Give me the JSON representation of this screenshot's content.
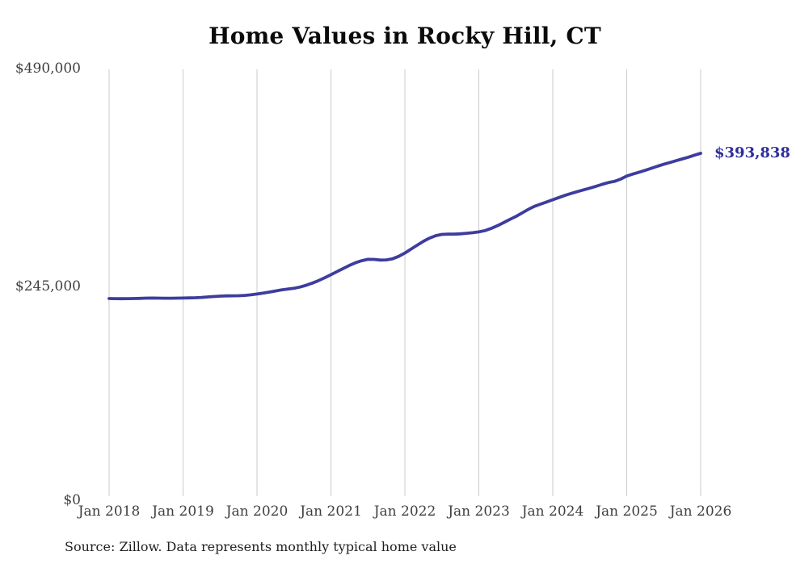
{
  "chart_data": {
    "type": "line",
    "title": "Home Values in Rocky Hill, CT",
    "x_start": "2018-01",
    "x_end": "2026-01",
    "interval": "monthly",
    "x_tick_labels": [
      "Jan 2018",
      "Jan 2019",
      "Jan 2020",
      "Jan 2021",
      "Jan 2022",
      "Jan 2023",
      "Jan 2024",
      "Jan 2025",
      "Jan 2026"
    ],
    "y_tick_labels": [
      "$0",
      "$245,000",
      "$490,000"
    ],
    "ylim": [
      0,
      490000
    ],
    "grid": "vertical-only",
    "legend": "none",
    "line_color": "#3e3c9e",
    "grid_color": "#cbcbcb",
    "end_label": "$393,838",
    "latest_value": 393838,
    "values": [
      229000,
      228900,
      228800,
      228900,
      229000,
      229200,
      229400,
      229500,
      229400,
      229300,
      229300,
      229400,
      229500,
      229700,
      229900,
      230300,
      230800,
      231300,
      231700,
      232000,
      232100,
      232200,
      232500,
      233200,
      234100,
      235100,
      236300,
      237600,
      238900,
      239700,
      240600,
      242100,
      244100,
      246600,
      249400,
      252600,
      256100,
      259600,
      263100,
      266600,
      269600,
      271900,
      273500,
      273400,
      272700,
      272800,
      274100,
      276900,
      280600,
      285100,
      289600,
      293900,
      297600,
      300300,
      301800,
      302100,
      302100,
      302400,
      303100,
      303700,
      304600,
      306100,
      308600,
      311600,
      315100,
      318600,
      322100,
      326100,
      330100,
      333600,
      336100,
      338600,
      341100,
      343600,
      346100,
      348300,
      350400,
      352300,
      354300,
      356400,
      358600,
      360600,
      362000,
      364500,
      368000,
      370300,
      372400,
      374500,
      376800,
      379200,
      381400,
      383400,
      385400,
      387400,
      389400,
      391700,
      393838
    ]
  },
  "source_note": "Source: Zillow. Data represents monthly typical home value"
}
